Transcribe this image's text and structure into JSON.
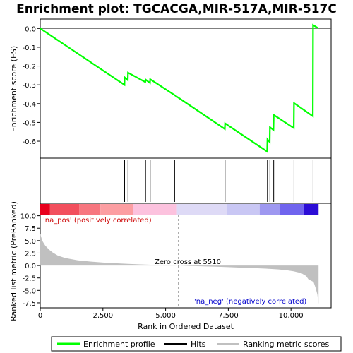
{
  "chart_data": {
    "type": "line",
    "title": "Enrichment plot: TGCACGA,MIR-517A,MIR-517C",
    "xlabel": "Rank in Ordered Dataset",
    "ylabel_top": "Enrichment score (ES)",
    "ylabel_bottom": "Ranked list metric (PreRanked)",
    "x_range": [
      0,
      11600
    ],
    "x_ticks": [
      0,
      2500,
      5000,
      7500,
      10000
    ],
    "x_tick_labels": [
      "0",
      "2,500",
      "5,000",
      "7,500",
      "10,000"
    ],
    "es_ylim": [
      -0.69,
      0.05
    ],
    "es_ticks": [
      0.0,
      -0.1,
      -0.2,
      -0.3,
      -0.4,
      -0.5,
      -0.6
    ],
    "es_tick_labels": [
      "0.0",
      "-0.1",
      "-0.2",
      "-0.3",
      "-0.4",
      "-0.5",
      "-0.6"
    ],
    "metric_ylim": [
      -8.5,
      12.5
    ],
    "metric_ticks": [
      10.0,
      7.5,
      5.0,
      2.5,
      0.0,
      -2.5,
      -5.0,
      -7.5
    ],
    "metric_tick_labels": [
      "10.0",
      "7.5",
      "5.0",
      "2.5",
      "0.0",
      "-2.5",
      "-5.0",
      "-7.5"
    ],
    "enrichment_profile": {
      "name": "Enrichment profile",
      "color": "#00ff00",
      "points": [
        [
          0,
          0.0
        ],
        [
          3360,
          -0.3
        ],
        [
          3365,
          -0.26
        ],
        [
          3490,
          -0.275
        ],
        [
          3500,
          -0.235
        ],
        [
          4190,
          -0.285
        ],
        [
          4200,
          -0.272
        ],
        [
          4375,
          -0.29
        ],
        [
          4385,
          -0.27
        ],
        [
          5360,
          -0.355
        ],
        [
          7360,
          -0.535
        ],
        [
          7370,
          -0.505
        ],
        [
          9050,
          -0.655
        ],
        [
          9060,
          -0.59
        ],
        [
          9150,
          -0.605
        ],
        [
          9160,
          -0.525
        ],
        [
          9300,
          -0.54
        ],
        [
          9310,
          -0.46
        ],
        [
          10110,
          -0.53
        ],
        [
          10120,
          -0.397
        ],
        [
          10870,
          -0.467
        ],
        [
          10880,
          0.018
        ],
        [
          11100,
          0.0
        ]
      ]
    },
    "hits": {
      "name": "Hits",
      "color": "#000000",
      "positions": [
        3365,
        3500,
        4200,
        4385,
        5360,
        7370,
        9060,
        9160,
        9310,
        10120,
        10880
      ]
    },
    "ranking_metric": {
      "name": "Ranking metric scores",
      "color": "#c0c0c0",
      "points": [
        [
          0,
          6.4
        ],
        [
          80,
          5.0
        ],
        [
          200,
          4.0
        ],
        [
          350,
          3.2
        ],
        [
          500,
          2.6
        ],
        [
          700,
          2.0
        ],
        [
          1000,
          1.5
        ],
        [
          1500,
          1.05
        ],
        [
          2000,
          0.8
        ],
        [
          2500,
          0.6
        ],
        [
          3000,
          0.45
        ],
        [
          3500,
          0.33
        ],
        [
          4000,
          0.22
        ],
        [
          4500,
          0.14
        ],
        [
          5000,
          0.06
        ],
        [
          5510,
          0.0
        ],
        [
          6000,
          -0.08
        ],
        [
          6500,
          -0.16
        ],
        [
          7000,
          -0.24
        ],
        [
          7500,
          -0.32
        ],
        [
          8000,
          -0.42
        ],
        [
          8500,
          -0.52
        ],
        [
          9000,
          -0.63
        ],
        [
          9500,
          -0.78
        ],
        [
          9800,
          -0.92
        ],
        [
          10100,
          -1.15
        ],
        [
          10400,
          -1.5
        ],
        [
          10600,
          -2.1
        ],
        [
          10700,
          -2.8
        ],
        [
          10900,
          -3.3
        ],
        [
          10980,
          -4.5
        ],
        [
          11050,
          -5.8
        ],
        [
          11100,
          -7.7
        ]
      ]
    },
    "colorbar_segments": [
      {
        "from": 0,
        "to": 380,
        "color": "#e8001c"
      },
      {
        "from": 380,
        "to": 1550,
        "color": "#f24f5d"
      },
      {
        "from": 1550,
        "to": 2400,
        "color": "#f7767f"
      },
      {
        "from": 2400,
        "to": 3700,
        "color": "#fc9ea2"
      },
      {
        "from": 3700,
        "to": 5450,
        "color": "#fcc2de"
      },
      {
        "from": 5450,
        "to": 7450,
        "color": "#dedaf6"
      },
      {
        "from": 7450,
        "to": 8750,
        "color": "#c9c7f4"
      },
      {
        "from": 8750,
        "to": 9550,
        "color": "#9e98f0"
      },
      {
        "from": 9550,
        "to": 10500,
        "color": "#7064ee"
      },
      {
        "from": 10500,
        "to": 11100,
        "color": "#2b0cd6"
      }
    ],
    "zero_cross": 5510,
    "annotations": {
      "pos": "'na_pos' (positively correlated)",
      "neg": "'na_neg' (negatively correlated)",
      "zero": "Zero cross at 5510"
    },
    "annotation_colors": {
      "pos": "#cc0000",
      "neg": "#0000cc"
    },
    "legend": [
      "Enrichment profile",
      "Hits",
      "Ranking metric scores"
    ]
  }
}
